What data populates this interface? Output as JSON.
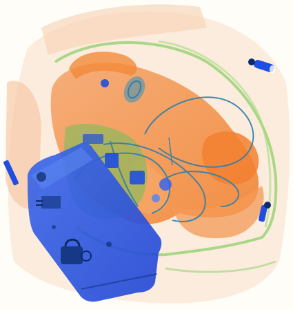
{
  "image": {
    "kind": "x-ray baggage scan",
    "palette": {
      "background": "#fffdf8",
      "organic": "#f07a22",
      "organic_light": "#f9c9a0",
      "mixed": "#8fcf6a",
      "inorganic": "#1f4fe0",
      "inorganic_light": "#5a86f0",
      "cable": "#2f7fa8",
      "dark": "#0a2a6a"
    }
  }
}
